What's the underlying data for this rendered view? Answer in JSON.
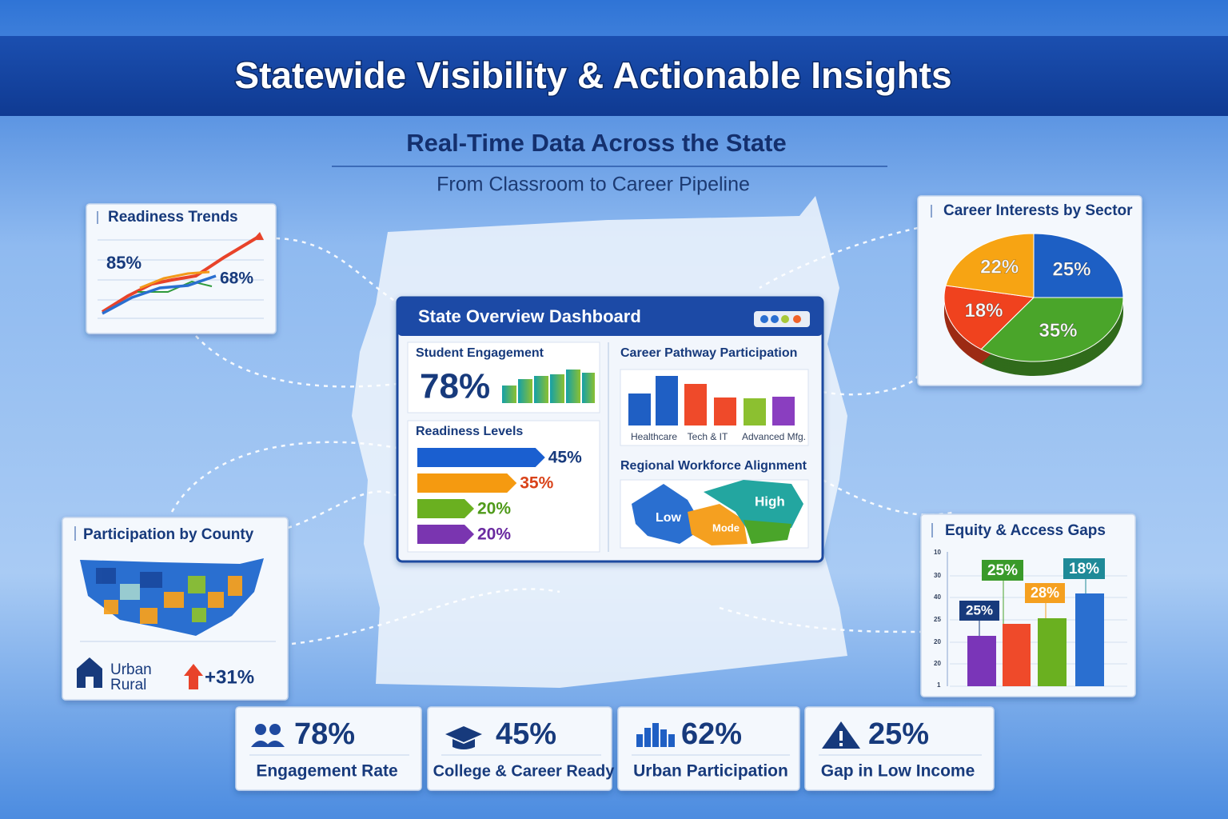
{
  "header": {
    "title": "Statewide Visibility & Actionable Insights",
    "subtitle": "Real-Time Data Across the State",
    "tagline": "From Classroom to Career Pipeline"
  },
  "readiness_trends": {
    "title": "Readiness Trends",
    "labels": [
      "85%",
      "68%"
    ]
  },
  "career_interests": {
    "title": "Career Interests by Sector",
    "values": [
      25,
      35,
      18,
      22
    ],
    "value_labels": [
      "25%",
      "35%",
      "18%",
      "22%"
    ],
    "colors": [
      "#1d5fc4",
      "#4aa52a",
      "#f0421e",
      "#f7a413"
    ]
  },
  "dashboard": {
    "title": "State Overview Dashboard",
    "student_engagement": {
      "title": "Student Engagement",
      "value": "78%"
    },
    "career_pathway": {
      "title": "Career Pathway Participation",
      "categories": [
        "Healthcare",
        "Tech & IT",
        "Advanced Mfg."
      ]
    },
    "readiness_levels": {
      "title": "Readiness Levels",
      "values": [
        45,
        35,
        20,
        20
      ],
      "value_labels": [
        "45%",
        "35%",
        "20%",
        "20%"
      ],
      "colors": [
        "#1a5fd0",
        "#f59a10",
        "#6ab020",
        "#7a35b0"
      ],
      "label_colors": [
        "#173a7c",
        "#d9431a",
        "#4f9a1a",
        "#6a2aa0"
      ]
    },
    "regional_alignment": {
      "title": "Regional Workforce Alignment",
      "labels": [
        "Low",
        "Mode",
        "High"
      ]
    }
  },
  "participation_by_county": {
    "title": "Participation by County",
    "legend": [
      "Urban",
      "Rural"
    ],
    "change": "+31%"
  },
  "equity_gaps": {
    "title": "Equity & Access Gaps",
    "axis_labels": [
      "10",
      "30",
      "40",
      "25",
      "20",
      "20",
      "1"
    ],
    "labels": [
      "25%",
      "25%",
      "28%",
      "18%"
    ]
  },
  "kpis": [
    {
      "value": "78%",
      "label": "Engagement Rate"
    },
    {
      "value": "45%",
      "label": "College & Career Ready"
    },
    {
      "value": "62%",
      "label": "Urban Participation"
    },
    {
      "value": "25%",
      "label": "Gap in Low Income"
    }
  ]
}
